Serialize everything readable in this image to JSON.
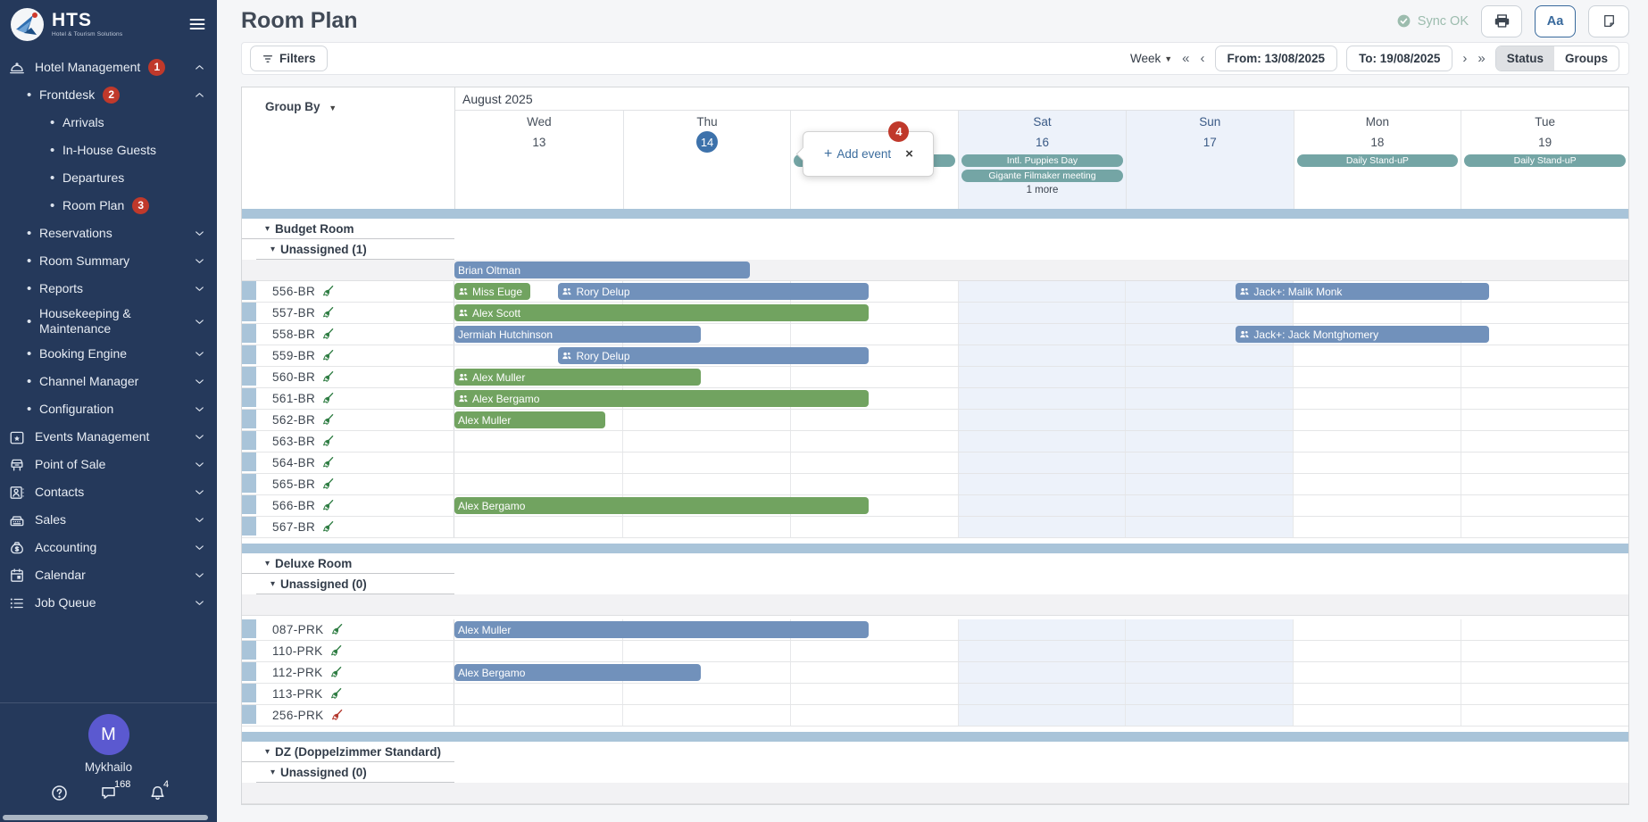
{
  "app": {
    "logo_text": "HTS",
    "logo_subtitle": "Hotel & Tourism Solutions"
  },
  "colors": {
    "sidebar_bg": "#25395b",
    "red": "#c0392b",
    "bar_blue": "#7191bb",
    "bar_green": "#71a360",
    "teal": "#74a5a5",
    "today_blue": "#3d72ab",
    "weekend_bg": "#edf2fa",
    "separator_blue": "#a9c4d9",
    "avatar_purple": "#5b59d0"
  },
  "sidebar": {
    "items": [
      {
        "label": "Hotel Management",
        "icon": "cloche",
        "badge": "1",
        "chevron": "up",
        "level": 0
      },
      {
        "label": "Frontdesk",
        "badge": "2",
        "chevron": "up",
        "level": 1
      },
      {
        "label": "Arrivals",
        "level": 2
      },
      {
        "label": "In-House Guests",
        "level": 2
      },
      {
        "label": "Departures",
        "level": 2
      },
      {
        "label": "Room Plan",
        "badge": "3",
        "level": 2
      },
      {
        "label": "Reservations",
        "chevron": "down",
        "level": 1
      },
      {
        "label": "Room Summary",
        "chevron": "down",
        "level": 1
      },
      {
        "label": "Reports",
        "chevron": "down",
        "level": 1
      },
      {
        "label": "Housekeeping & Maintenance",
        "chevron": "down",
        "level": 1
      },
      {
        "label": "Booking Engine",
        "chevron": "down",
        "level": 1
      },
      {
        "label": "Channel Manager",
        "chevron": "down",
        "level": 1
      },
      {
        "label": "Configuration",
        "chevron": "down",
        "level": 1
      },
      {
        "label": "Events Management",
        "icon": "calendar-star",
        "chevron": "down",
        "level": 0
      },
      {
        "label": "Point of Sale",
        "icon": "pos",
        "chevron": "down",
        "level": 0
      },
      {
        "label": "Contacts",
        "icon": "contact-card",
        "chevron": "down",
        "level": 0
      },
      {
        "label": "Sales",
        "icon": "cash-register",
        "chevron": "down",
        "level": 0
      },
      {
        "label": "Accounting",
        "icon": "money-bag",
        "chevron": "down",
        "level": 0
      },
      {
        "label": "Calendar",
        "icon": "calendar",
        "chevron": "down",
        "level": 0
      },
      {
        "label": "Job Queue",
        "icon": "list",
        "chevron": "down",
        "level": 0
      }
    ],
    "user": {
      "initial": "M",
      "name": "Mykhailo"
    },
    "footer": {
      "chat_count": "168",
      "bell_count": "4"
    }
  },
  "header": {
    "title": "Room Plan",
    "sync_status": "Sync OK",
    "font_button_label": "Aa"
  },
  "toolbar": {
    "filters_label": "Filters",
    "range_label": "Week",
    "from_label": "From: 13/08/2025",
    "to_label": "To: 19/08/2025",
    "status_label": "Status",
    "groups_label": "Groups",
    "nav_first": "«",
    "nav_prev": "‹",
    "nav_next": "›",
    "nav_last": "»"
  },
  "calendar": {
    "group_by_label": "Group By",
    "month_label": "August 2025",
    "days": [
      {
        "name": "Wed",
        "num": "13"
      },
      {
        "name": "Thu",
        "num": "14",
        "today": true
      },
      {
        "name": "",
        "num": ""
      },
      {
        "name": "Sat",
        "num": "16",
        "weekend": true
      },
      {
        "name": "Sun",
        "num": "17",
        "weekend": true
      },
      {
        "name": "Mon",
        "num": "18"
      },
      {
        "name": "Tue",
        "num": "19"
      }
    ],
    "events": [
      {
        "day": 2,
        "label": "Daily Stand-uP"
      },
      {
        "day": 3,
        "label": "Intl. Puppies Day"
      },
      {
        "day": 3,
        "label": "Gigante Filmaker meeting"
      },
      {
        "day": 3,
        "label": "1 more",
        "more": true
      },
      {
        "day": 5,
        "label": "Daily Stand-uP"
      },
      {
        "day": 6,
        "label": "Daily Stand-uP"
      }
    ],
    "popup": {
      "plus": "+",
      "label": "Add event",
      "badge": "4",
      "close": "×"
    }
  },
  "groups": [
    {
      "name": "Budget Room",
      "unassigned_label": "Unassigned (1)",
      "unassigned_bars": [
        {
          "name": "Brian Oltman",
          "color": "blue",
          "start": 0,
          "end": 1.76
        }
      ],
      "rooms": [
        {
          "id": "556-BR",
          "broom": "green",
          "bars": [
            {
              "name": "Miss Euge",
              "color": "green",
              "icon": true,
              "start": 0,
              "end": 0.45
            },
            {
              "name": "Rory Delup",
              "color": "blue",
              "icon": true,
              "start": 0.62,
              "end": 2.47
            },
            {
              "name": "Jack+: Malik Monk",
              "color": "blue",
              "icon": true,
              "start": 4.66,
              "end": 6.17
            }
          ]
        },
        {
          "id": "557-BR",
          "broom": "green",
          "bars": [
            {
              "name": "Alex Scott",
              "color": "green",
              "icon": true,
              "start": 0,
              "end": 2.47
            }
          ]
        },
        {
          "id": "558-BR",
          "broom": "green",
          "bars": [
            {
              "name": "Jermiah Hutchinson",
              "color": "blue",
              "start": 0,
              "end": 1.47
            },
            {
              "name": "Jack+: Jack Montghomery",
              "color": "blue",
              "icon": true,
              "start": 4.66,
              "end": 6.17
            }
          ]
        },
        {
          "id": "559-BR",
          "broom": "green",
          "bars": [
            {
              "name": "Rory Delup",
              "color": "blue",
              "icon": true,
              "start": 0.62,
              "end": 2.47
            }
          ]
        },
        {
          "id": "560-BR",
          "broom": "green",
          "bars": [
            {
              "name": "Alex Muller",
              "color": "green",
              "icon": true,
              "start": 0,
              "end": 1.47
            }
          ]
        },
        {
          "id": "561-BR",
          "broom": "green",
          "bars": [
            {
              "name": "Alex Bergamo",
              "color": "green",
              "icon": true,
              "start": 0,
              "end": 2.47
            }
          ]
        },
        {
          "id": "562-BR",
          "broom": "green",
          "bars": [
            {
              "name": "Alex Muller",
              "color": "green",
              "start": 0,
              "end": 0.9
            }
          ]
        },
        {
          "id": "563-BR",
          "broom": "green",
          "bars": []
        },
        {
          "id": "564-BR",
          "broom": "green",
          "bars": []
        },
        {
          "id": "565-BR",
          "broom": "green",
          "bars": []
        },
        {
          "id": "566-BR",
          "broom": "green",
          "bars": [
            {
              "name": "Alex Bergamo",
              "color": "green",
              "start": 0,
              "end": 2.47
            }
          ]
        },
        {
          "id": "567-BR",
          "broom": "green",
          "bars": []
        }
      ]
    },
    {
      "name": "Deluxe Room",
      "unassigned_label": "Unassigned (0)",
      "unassigned_bars": [],
      "rooms": [
        {
          "id": "087-PRK",
          "broom": "green",
          "bars": [
            {
              "name": "Alex Muller",
              "color": "blue",
              "start": 0,
              "end": 2.47
            }
          ]
        },
        {
          "id": "110-PRK",
          "broom": "green",
          "bars": []
        },
        {
          "id": "112-PRK",
          "broom": "green",
          "bars": [
            {
              "name": "Alex Bergamo",
              "color": "blue",
              "start": 0,
              "end": 1.47
            }
          ]
        },
        {
          "id": "113-PRK",
          "broom": "green",
          "bars": []
        },
        {
          "id": "256-PRK",
          "broom": "red",
          "bars": []
        }
      ]
    },
    {
      "name": "DZ (Doppelzimmer Standard)",
      "unassigned_label": "Unassigned (0)",
      "unassigned_bars": [],
      "rooms": []
    }
  ]
}
